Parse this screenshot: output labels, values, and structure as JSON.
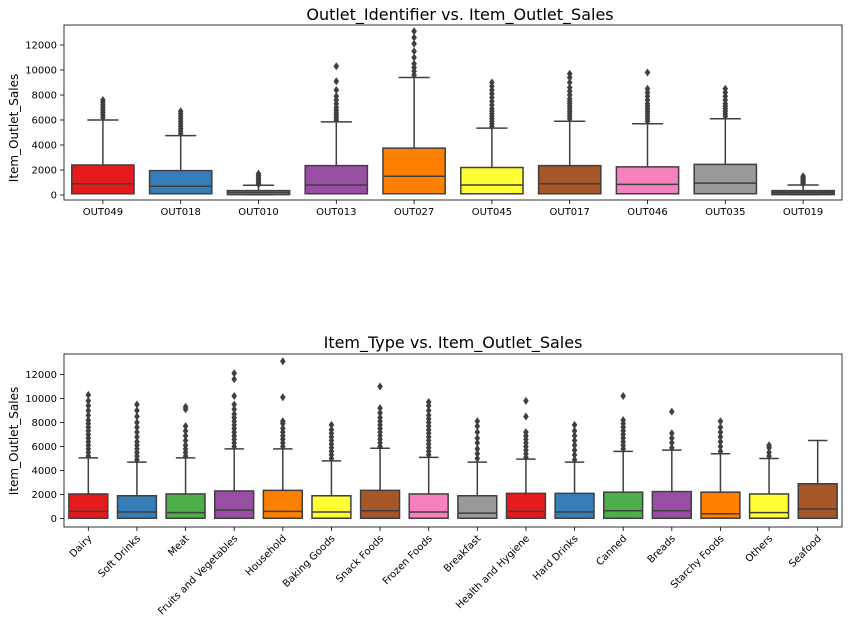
{
  "chart_data": [
    {
      "type": "box",
      "title": "Outlet_Identifier vs. Item_Outlet_Sales",
      "xlabel": "",
      "ylabel": "Item_Outlet_Sales",
      "ylim": [
        -400,
        13600
      ],
      "yticks": [
        0,
        2000,
        4000,
        6000,
        8000,
        10000,
        12000
      ],
      "categories": [
        "OUT049",
        "OUT018",
        "OUT010",
        "OUT013",
        "OUT027",
        "OUT045",
        "OUT017",
        "OUT046",
        "OUT035",
        "OUT019"
      ],
      "colors": [
        "#e41a1c",
        "#377eb8",
        "#4daf4a",
        "#984ea3",
        "#ff7f00",
        "#ffff33",
        "#a65628",
        "#f781bf",
        "#999999",
        "#e41a1c"
      ],
      "boxes": [
        {
          "min": 100,
          "q1": 100,
          "median": 900,
          "q3": 2400,
          "max": 6000,
          "outliers": [
            6200,
            6400,
            6600,
            6800,
            7000,
            7200,
            7400,
            7600
          ]
        },
        {
          "min": 100,
          "q1": 100,
          "median": 700,
          "q3": 1950,
          "max": 4750,
          "outliers": [
            4900,
            5100,
            5300,
            5500,
            5700,
            5900,
            6100,
            6300,
            6500,
            6700
          ]
        },
        {
          "min": 30,
          "q1": 30,
          "median": 200,
          "q3": 350,
          "max": 780,
          "outliers": [
            850,
            950,
            1100,
            1250,
            1400,
            1550,
            1700
          ]
        },
        {
          "min": 100,
          "q1": 100,
          "median": 800,
          "q3": 2350,
          "max": 5850,
          "outliers": [
            6000,
            6200,
            6400,
            6600,
            6800,
            7000,
            7300,
            7600,
            7900,
            8400,
            9100,
            10300
          ]
        },
        {
          "min": 100,
          "q1": 100,
          "median": 1500,
          "q3": 3750,
          "max": 9400,
          "outliers": [
            9600,
            9900,
            10200,
            10500,
            11000,
            11500,
            12100,
            12600,
            13100
          ]
        },
        {
          "min": 100,
          "q1": 100,
          "median": 800,
          "q3": 2200,
          "max": 5350,
          "outliers": [
            5500,
            5700,
            5900,
            6100,
            6300,
            6500,
            6700,
            6900,
            7200,
            7500,
            7800,
            8100,
            8400,
            8700,
            9000
          ]
        },
        {
          "min": 100,
          "q1": 100,
          "median": 900,
          "q3": 2350,
          "max": 5900,
          "outliers": [
            6100,
            6300,
            6500,
            6700,
            6900,
            7100,
            7300,
            7500,
            7700,
            8000,
            8300,
            8600,
            9000,
            9400,
            9700
          ]
        },
        {
          "min": 100,
          "q1": 100,
          "median": 850,
          "q3": 2250,
          "max": 5700,
          "outliers": [
            5900,
            6100,
            6300,
            6500,
            6700,
            6900,
            7100,
            7300,
            7600,
            7900,
            8200,
            8500,
            9800
          ]
        },
        {
          "min": 100,
          "q1": 100,
          "median": 950,
          "q3": 2450,
          "max": 6100,
          "outliers": [
            6300,
            6500,
            6700,
            6900,
            7100,
            7300,
            7600,
            7900,
            8200,
            8500
          ]
        },
        {
          "min": 30,
          "q1": 30,
          "median": 200,
          "q3": 350,
          "max": 800,
          "outliers": [
            900,
            1000,
            1100,
            1200,
            1300,
            1400,
            1500
          ]
        }
      ]
    },
    {
      "type": "box",
      "title": "Item_Type vs. Item_Outlet_Sales",
      "xlabel": "",
      "ylabel": "Item_Outlet_Sales",
      "ylim": [
        -700,
        13700
      ],
      "yticks": [
        0,
        2000,
        4000,
        6000,
        8000,
        10000,
        12000
      ],
      "categories": [
        "Dairy",
        "Soft Drinks",
        "Meat",
        "Fruits and Vegetables",
        "Household",
        "Baking Goods",
        "Snack Foods",
        "Frozen Foods",
        "Breakfast",
        "Health and Hygiene",
        "Hard Drinks",
        "Canned",
        "Breads",
        "Starchy Foods",
        "Others",
        "Seafood"
      ],
      "colors": [
        "#e41a1c",
        "#377eb8",
        "#4daf4a",
        "#984ea3",
        "#ff7f00",
        "#ffff33",
        "#a65628",
        "#f781bf",
        "#999999",
        "#e41a1c",
        "#377eb8",
        "#4daf4a",
        "#984ea3",
        "#ff7f00",
        "#ffff33",
        "#a65628"
      ],
      "boxes": [
        {
          "min": 30,
          "q1": 30,
          "median": 600,
          "q3": 2050,
          "max": 5050,
          "outliers": [
            5200,
            5500,
            5800,
            6100,
            6400,
            6700,
            7000,
            7300,
            7600,
            7900,
            8200,
            8600,
            9000,
            9400,
            9800,
            10300
          ]
        },
        {
          "min": 30,
          "q1": 30,
          "median": 550,
          "q3": 1900,
          "max": 4700,
          "outliers": [
            4900,
            5200,
            5500,
            5800,
            6100,
            6400,
            6800,
            7200,
            7600,
            8000,
            8500,
            9000,
            9500
          ]
        },
        {
          "min": 30,
          "q1": 30,
          "median": 500,
          "q3": 2050,
          "max": 5050,
          "outliers": [
            5200,
            5500,
            5800,
            6100,
            6500,
            6900,
            7300,
            7700,
            9100,
            9300
          ]
        },
        {
          "min": 30,
          "q1": 30,
          "median": 700,
          "q3": 2300,
          "max": 5800,
          "outliers": [
            6000,
            6300,
            6600,
            6900,
            7200,
            7500,
            7800,
            8100,
            8400,
            8700,
            9100,
            9500,
            10200,
            11600,
            12100
          ]
        },
        {
          "min": 30,
          "q1": 30,
          "median": 600,
          "q3": 2350,
          "max": 5800,
          "outliers": [
            6000,
            6300,
            6600,
            6900,
            7200,
            7500,
            7900,
            8100,
            10100,
            13100
          ]
        },
        {
          "min": 30,
          "q1": 30,
          "median": 550,
          "q3": 1900,
          "max": 4800,
          "outliers": [
            5000,
            5300,
            5600,
            5900,
            6200,
            6500,
            6800,
            7100,
            7400,
            7800
          ]
        },
        {
          "min": 30,
          "q1": 30,
          "median": 650,
          "q3": 2350,
          "max": 5850,
          "outliers": [
            6000,
            6300,
            6600,
            6900,
            7200,
            7500,
            7800,
            8100,
            8400,
            8800,
            9200,
            11000
          ]
        },
        {
          "min": 30,
          "q1": 30,
          "median": 550,
          "q3": 2050,
          "max": 5100,
          "outliers": [
            5300,
            5600,
            5900,
            6200,
            6500,
            6800,
            7100,
            7400,
            7700,
            8000,
            8300,
            8600,
            9000,
            9400,
            9700
          ]
        },
        {
          "min": 30,
          "q1": 30,
          "median": 450,
          "q3": 1900,
          "max": 4700,
          "outliers": [
            5000,
            5400,
            5800,
            6300,
            6700,
            7200,
            7700,
            8100
          ]
        },
        {
          "min": 30,
          "q1": 30,
          "median": 600,
          "q3": 2100,
          "max": 4950,
          "outliers": [
            5100,
            5400,
            5700,
            6000,
            6300,
            6600,
            6900,
            7200,
            8500,
            9800
          ]
        },
        {
          "min": 30,
          "q1": 30,
          "median": 550,
          "q3": 2100,
          "max": 4700,
          "outliers": [
            4900,
            5300,
            5700,
            6100,
            6500,
            6900,
            7300,
            7800
          ]
        },
        {
          "min": 30,
          "q1": 30,
          "median": 650,
          "q3": 2200,
          "max": 5600,
          "outliers": [
            5800,
            6100,
            6400,
            6700,
            7000,
            7300,
            7600,
            7900,
            8200,
            10200
          ]
        },
        {
          "min": 30,
          "q1": 30,
          "median": 650,
          "q3": 2250,
          "max": 5700,
          "outliers": [
            5900,
            6300,
            6700,
            7100,
            8900
          ]
        },
        {
          "min": 30,
          "q1": 30,
          "median": 400,
          "q3": 2200,
          "max": 5400,
          "outliers": [
            5600,
            6000,
            6400,
            6800,
            7200,
            7600,
            8100
          ]
        },
        {
          "min": 30,
          "q1": 30,
          "median": 500,
          "q3": 2050,
          "max": 5000,
          "outliers": [
            5200,
            5500,
            5900,
            6100
          ]
        },
        {
          "min": 30,
          "q1": 30,
          "median": 800,
          "q3": 2900,
          "max": 6500,
          "outliers": []
        }
      ]
    }
  ]
}
